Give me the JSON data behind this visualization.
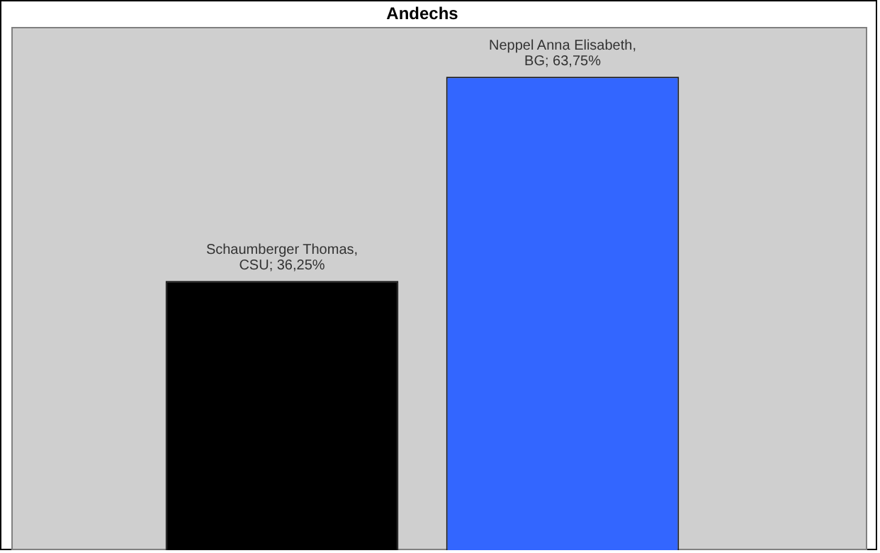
{
  "chart_data": {
    "type": "bar",
    "title": "Andechs",
    "categories": [
      null,
      null
    ],
    "values": [
      36.25,
      63.75
    ],
    "colors": [
      "#000000",
      "#3366ff"
    ],
    "value_labels": [
      "Schaumberger Thomas, CSU; 36,25%",
      "Neppel Anna Elisabeth, BG; 63,75%"
    ],
    "legend": false
  }
}
